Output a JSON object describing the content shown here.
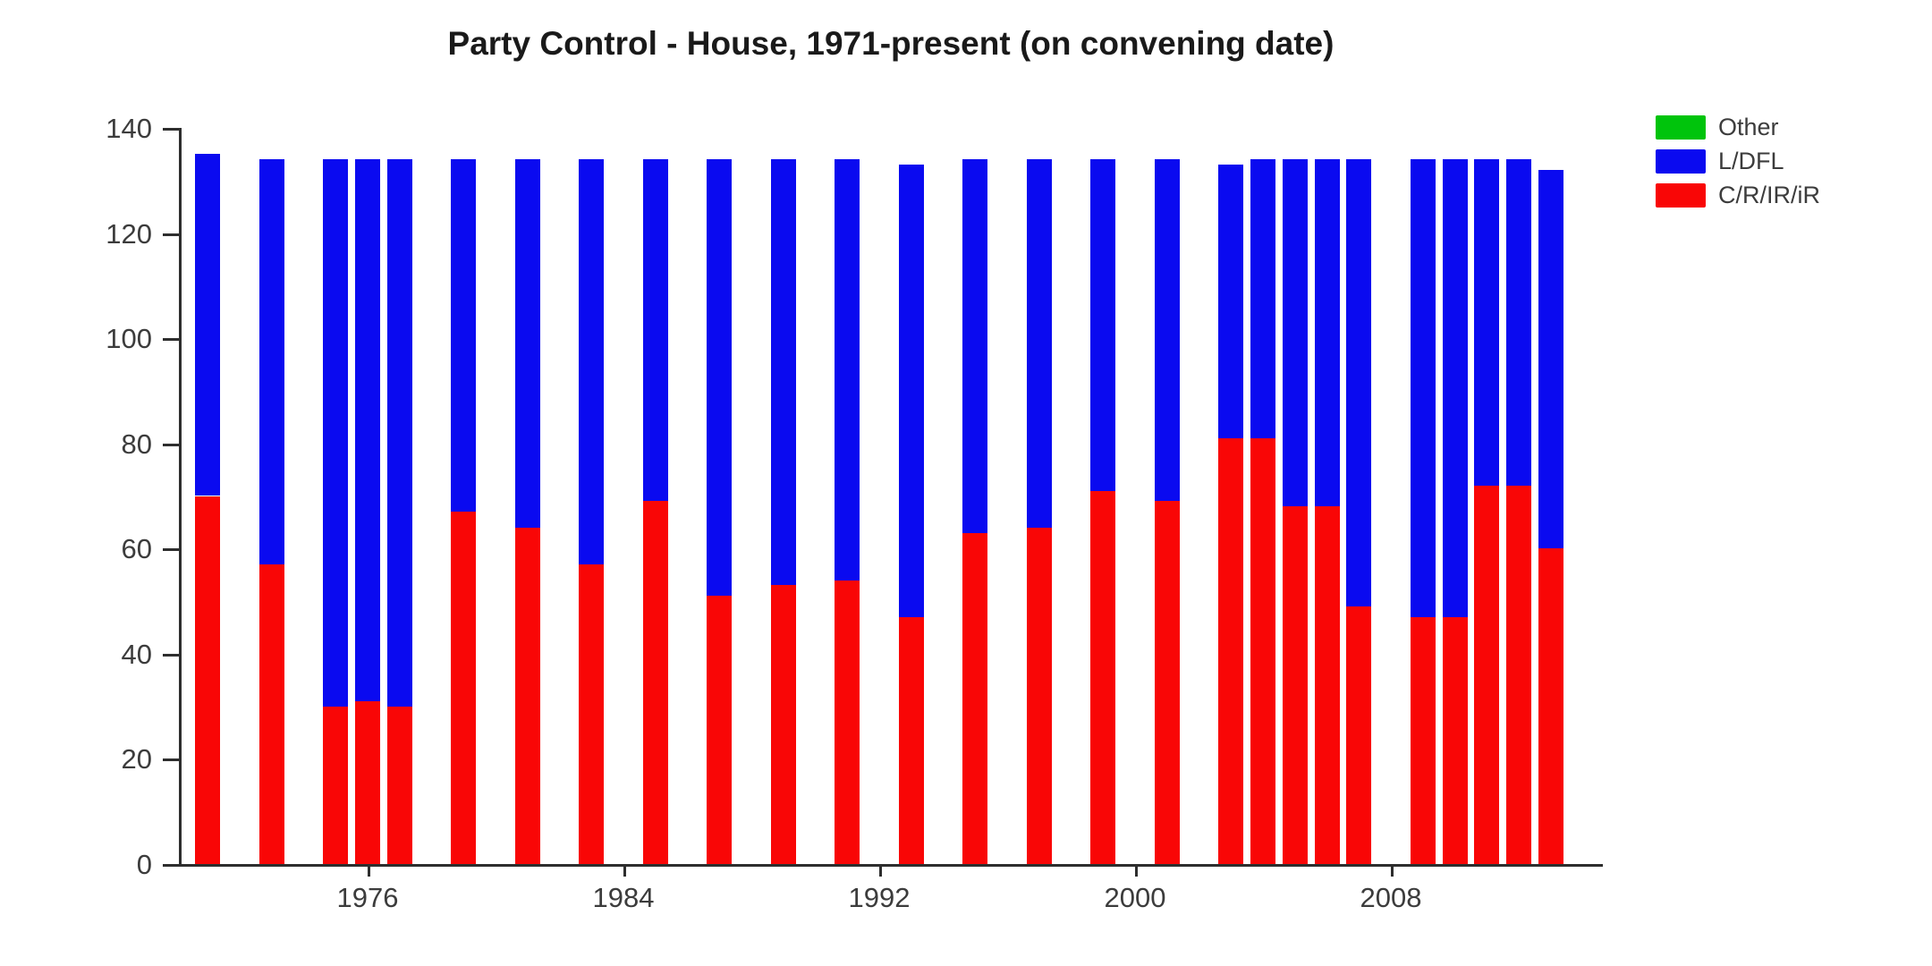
{
  "title": "Party Control - House, 1971-present (on convening date)",
  "legend": [
    {
      "label": "Other",
      "color": "#00c40c"
    },
    {
      "label": "L/DFL",
      "color": "#0a0af0"
    },
    {
      "label": "C/R/IR/iR",
      "color": "#f90606"
    }
  ],
  "chart_data": {
    "type": "bar",
    "stacked": true,
    "title": "Party Control - House, 1971-present (on convening date)",
    "xlabel": "",
    "ylabel": "",
    "ylim": [
      0,
      140
    ],
    "y_ticks": [
      0,
      20,
      40,
      60,
      80,
      100,
      120,
      140
    ],
    "x_ticks": [
      1976,
      1984,
      1992,
      2000,
      2008
    ],
    "grid": false,
    "legend_position": "top-right",
    "categories": [
      1971,
      1973,
      1975,
      1976,
      1977,
      1979,
      1981,
      1983,
      1985,
      1987,
      1989,
      1991,
      1993,
      1995,
      1997,
      1999,
      2001,
      2003,
      2004,
      2005,
      2006,
      2007,
      2009,
      2010,
      2011,
      2012,
      2013
    ],
    "series": [
      {
        "name": "C/R/IR/iR",
        "color": "#f90606",
        "values": [
          70,
          57,
          30,
          31,
          30,
          67,
          64,
          57,
          69,
          51,
          53,
          54,
          47,
          63,
          64,
          71,
          69,
          81,
          81,
          68,
          68,
          49,
          47,
          47,
          72,
          72,
          60
        ]
      },
      {
        "name": "L/DFL",
        "color": "#0a0af0",
        "values": [
          65,
          77,
          104,
          103,
          104,
          67,
          70,
          77,
          65,
          83,
          81,
          80,
          86,
          71,
          70,
          63,
          65,
          52,
          53,
          66,
          66,
          85,
          87,
          87,
          62,
          62,
          72
        ]
      },
      {
        "name": "Other",
        "color": "#00c40c",
        "values": [
          0,
          0,
          0,
          0,
          0,
          0,
          0,
          0,
          0,
          0,
          0,
          0,
          0,
          0,
          0,
          0,
          0,
          0,
          0,
          0,
          0,
          0,
          0,
          0,
          0,
          0,
          0
        ]
      }
    ]
  }
}
